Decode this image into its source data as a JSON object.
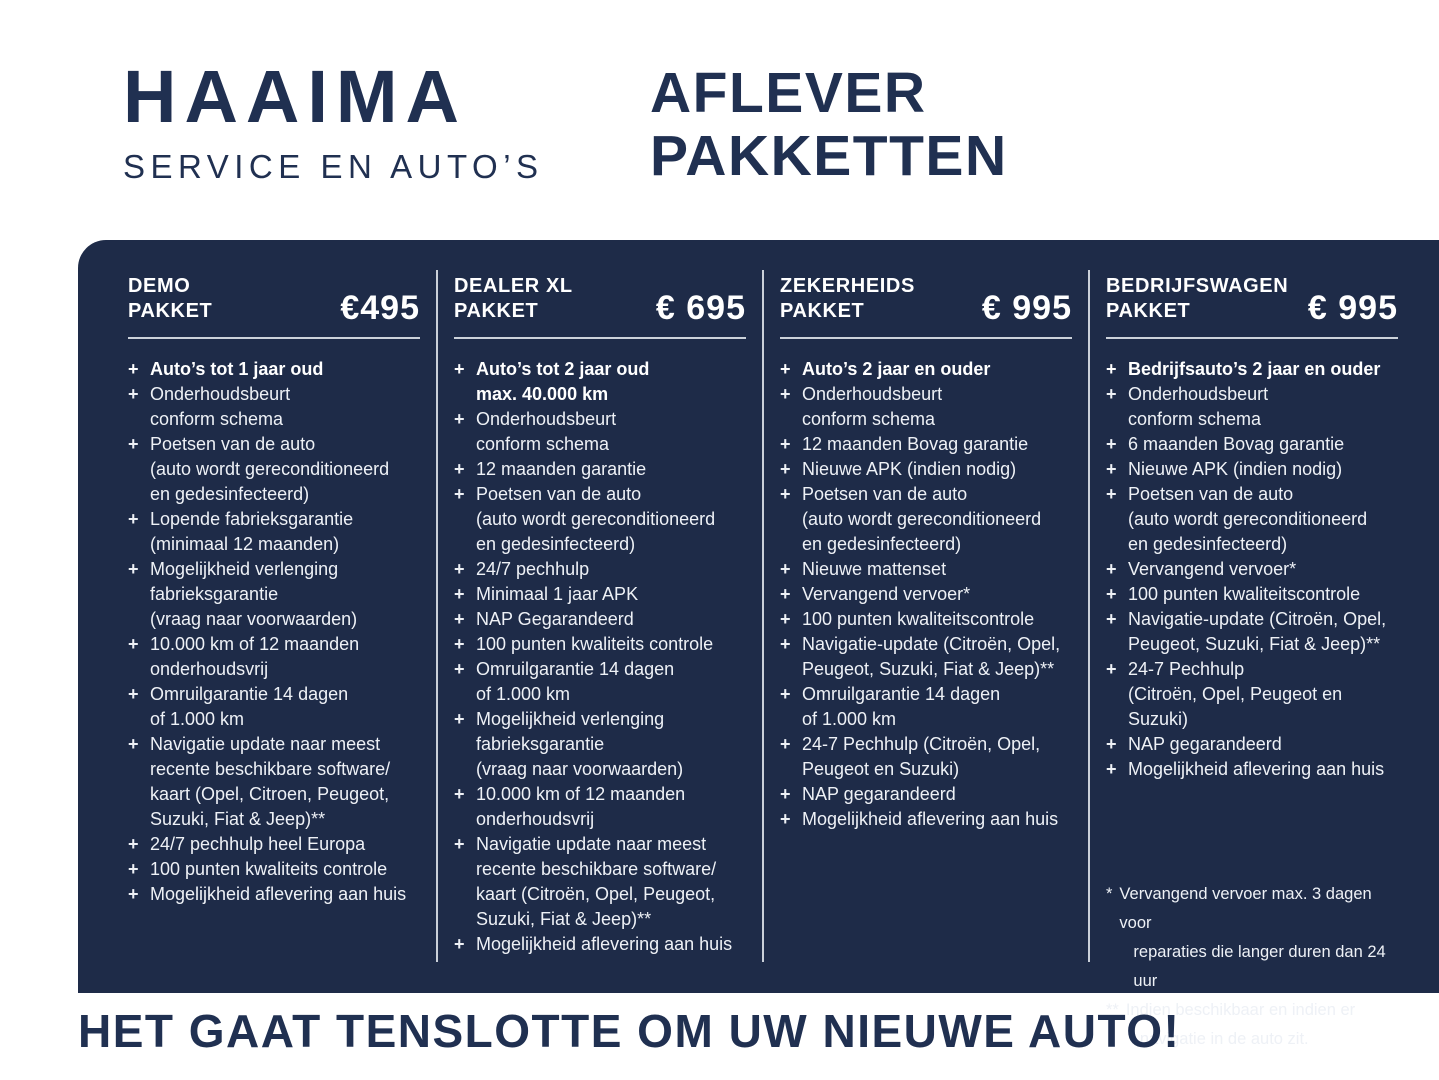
{
  "brand": {
    "name": "HAAIMA",
    "tagline": "SERVICE EN AUTO’S"
  },
  "title": {
    "line1": "AFLEVER",
    "line2": "PAKKETTEN"
  },
  "colors": {
    "navy_panel": "#1e2b48",
    "navy_text": "#203051",
    "light_text": "#eef1f6",
    "divider": "#d9dee6"
  },
  "packages": [
    {
      "name_line1": "DEMO",
      "name_line2": "PAKKET",
      "price": "€495",
      "items": [
        {
          "bold": true,
          "lines": [
            "Auto’s tot 1 jaar oud"
          ]
        },
        {
          "lines": [
            "Onderhoudsbeurt",
            "conform schema"
          ]
        },
        {
          "lines": [
            "Poetsen van de auto",
            "(auto wordt gereconditioneerd",
            "en gedesinfecteerd)"
          ]
        },
        {
          "lines": [
            "Lopende fabrieksgarantie",
            "(minimaal 12 maanden)"
          ]
        },
        {
          "lines": [
            "Mogelijkheid verlenging",
            "fabrieksgarantie",
            "(vraag naar voorwaarden)"
          ]
        },
        {
          "lines": [
            "10.000 km of 12 maanden",
            "onderhoudsvrij"
          ]
        },
        {
          "lines": [
            "Omruilgarantie 14 dagen",
            "of 1.000 km"
          ]
        },
        {
          "lines": [
            "Navigatie update naar meest",
            "recente beschikbare software/",
            "kaart (Opel, Citroen,  Peugeot,",
            "Suzuki, Fiat & Jeep)**"
          ]
        },
        {
          "lines": [
            "24/7 pechhulp heel Europa"
          ]
        },
        {
          "lines": [
            "100 punten kwaliteits controle"
          ]
        },
        {
          "lines": [
            "Mogelijkheid aflevering aan huis"
          ]
        }
      ]
    },
    {
      "name_line1": "DEALER XL",
      "name_line2": "PAKKET",
      "price": "€ 695",
      "items": [
        {
          "bold": true,
          "lines": [
            "Auto’s tot 2 jaar oud",
            "max. 40.000 km"
          ]
        },
        {
          "lines": [
            "Onderhoudsbeurt",
            "conform schema"
          ]
        },
        {
          "lines": [
            "12 maanden garantie"
          ]
        },
        {
          "lines": [
            "Poetsen van de auto",
            "(auto wordt gereconditioneerd",
            "en gedesinfecteerd)"
          ]
        },
        {
          "lines": [
            "24/7 pechhulp"
          ]
        },
        {
          "lines": [
            "Minimaal 1 jaar APK"
          ]
        },
        {
          "lines": [
            "NAP Gegarandeerd"
          ]
        },
        {
          "lines": [
            "100 punten kwaliteits controle"
          ]
        },
        {
          "lines": [
            "Omruilgarantie 14 dagen",
            "of 1.000 km"
          ]
        },
        {
          "lines": [
            "Mogelijkheid verlenging",
            "fabrieksgarantie",
            "(vraag naar voorwaarden)"
          ]
        },
        {
          "lines": [
            "10.000 km of 12 maanden",
            "onderhoudsvrij"
          ]
        },
        {
          "lines": [
            "Navigatie update naar meest",
            "recente beschikbare software/",
            "kaart (Citroën, Opel, Peugeot,",
            "Suzuki, Fiat & Jeep)**"
          ]
        },
        {
          "lines": [
            "Mogelijkheid aflevering aan huis"
          ]
        }
      ]
    },
    {
      "name_line1": "ZEKERHEIDS",
      "name_line2": "PAKKET",
      "price": "€ 995",
      "items": [
        {
          "bold": true,
          "lines": [
            "Auto’s 2 jaar en ouder"
          ]
        },
        {
          "lines": [
            "Onderhoudsbeurt",
            "conform schema"
          ]
        },
        {
          "lines": [
            "12 maanden Bovag garantie"
          ]
        },
        {
          "lines": [
            "Nieuwe APK (indien nodig)"
          ]
        },
        {
          "lines": [
            "Poetsen van de auto",
            "(auto wordt gereconditioneerd",
            "en gedesinfecteerd)"
          ]
        },
        {
          "lines": [
            "Nieuwe mattenset"
          ]
        },
        {
          "lines": [
            "Vervangend vervoer*"
          ]
        },
        {
          "lines": [
            "100 punten kwaliteitscontrole"
          ]
        },
        {
          "lines": [
            "Navigatie-update (Citroën, Opel,",
            "Peugeot, Suzuki, Fiat & Jeep)**"
          ]
        },
        {
          "lines": [
            "Omruilgarantie 14 dagen",
            "of 1.000 km"
          ]
        },
        {
          "lines": [
            "24-7 Pechhulp (Citroën, Opel,",
            "Peugeot en Suzuki)"
          ]
        },
        {
          "lines": [
            "NAP gegarandeerd"
          ]
        },
        {
          "lines": [
            "Mogelijkheid aflevering aan huis"
          ]
        }
      ]
    },
    {
      "name_line1": "BEDRIJFSWAGEN",
      "name_line2": "PAKKET",
      "price": "€ 995",
      "items": [
        {
          "bold": true,
          "lines": [
            "Bedrijfsauto’s 2 jaar en ouder"
          ]
        },
        {
          "lines": [
            "Onderhoudsbeurt",
            "conform schema"
          ]
        },
        {
          "lines": [
            "6 maanden Bovag garantie"
          ]
        },
        {
          "lines": [
            "Nieuwe APK (indien nodig)"
          ]
        },
        {
          "lines": [
            "Poetsen van de auto",
            "(auto wordt gereconditioneerd",
            "en gedesinfecteerd)"
          ]
        },
        {
          "lines": [
            "Vervangend vervoer*"
          ]
        },
        {
          "lines": [
            "100 punten kwaliteitscontrole"
          ]
        },
        {
          "lines": [
            "Navigatie-update (Citroën, Opel,",
            "Peugeot, Suzuki, Fiat & Jeep)**"
          ]
        },
        {
          "lines": [
            "24-7 Pechhulp",
            "(Citroën, Opel, Peugeot en Suzuki)"
          ]
        },
        {
          "lines": [
            "NAP gegarandeerd"
          ]
        },
        {
          "lines": [
            "Mogelijkheid aflevering aan huis"
          ]
        }
      ]
    }
  ],
  "footnotes": [
    {
      "marker": "*",
      "lines": [
        "Vervangend vervoer max. 3 dagen voor",
        "reparaties die langer duren dan 24 uur"
      ]
    },
    {
      "marker": "**",
      "lines": [
        "Indien beschikbaar en indien er",
        "navigatie in de auto zit."
      ]
    }
  ],
  "footer": {
    "tagline": "HET GAAT TENSLOTTE OM UW NIEUWE AUTO!"
  }
}
